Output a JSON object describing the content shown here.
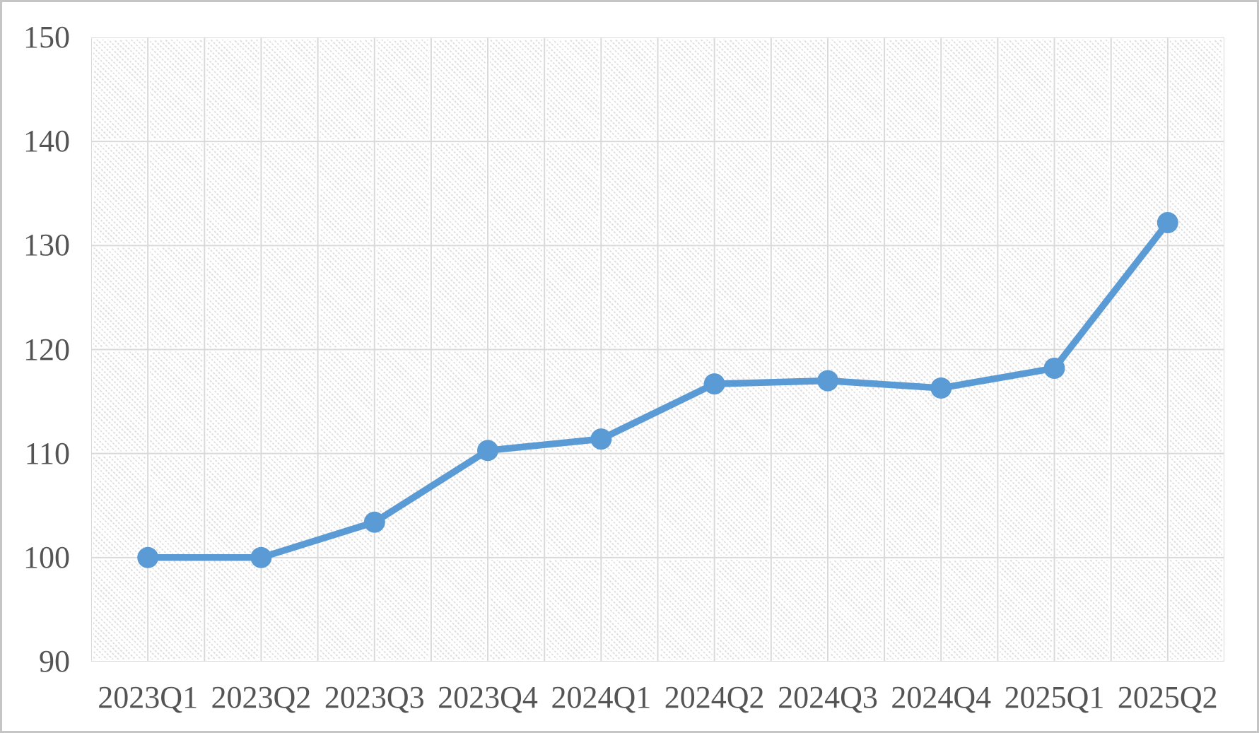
{
  "chart_data": {
    "type": "line",
    "title": "",
    "categories": [
      "2023Q1",
      "2023Q2",
      "2023Q3",
      "2023Q4",
      "2024Q1",
      "2024Q2",
      "2024Q3",
      "2024Q4",
      "2025Q1",
      "2025Q2"
    ],
    "series": [
      {
        "name": "",
        "values": [
          100,
          100,
          103.4,
          110.3,
          111.4,
          116.7,
          117.0,
          116.3,
          118.2,
          132.2
        ]
      }
    ],
    "ylim": [
      90,
      150
    ],
    "ytick_step": 10,
    "ytick_labels": [
      "90",
      "100",
      "110",
      "120",
      "130",
      "140",
      "150"
    ],
    "legend_position": "none",
    "grid": {
      "horizontal_major": true,
      "vertical_major": true,
      "vertical_minor": true
    },
    "plot_area_fill": "light-downward-diagonal-hatch",
    "marker": "circle",
    "colors": {
      "line": "#5b9bd5",
      "marker": "#5b9bd5",
      "gridline": "#d9d9d9",
      "hatch_dot": "#e0e0e0",
      "axis_text": "#545454",
      "canvas_border": "#c5c5c5",
      "background": "#ffffff"
    }
  }
}
